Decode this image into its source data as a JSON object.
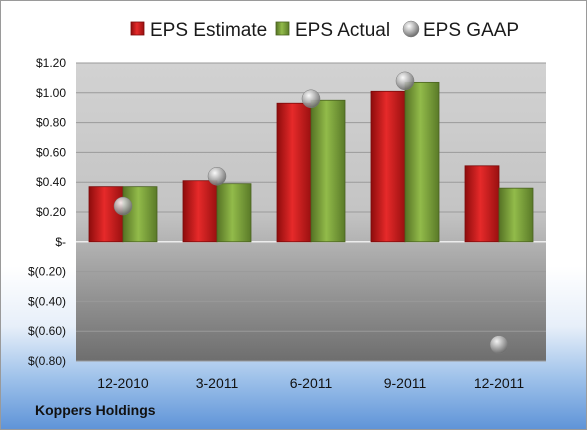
{
  "company_name": "Koppers Holdings",
  "chart_data": {
    "type": "bar",
    "title": "",
    "xlabel": "",
    "ylabel": "",
    "categories": [
      "12-2010",
      "3-2011",
      "6-2011",
      "9-2011",
      "12-2011"
    ],
    "series": [
      {
        "name": "EPS Estimate",
        "kind": "bar",
        "color": "#d42020",
        "values": [
          0.37,
          0.41,
          0.93,
          1.01,
          0.51
        ]
      },
      {
        "name": "EPS Actual",
        "kind": "bar",
        "color": "#7fa43a",
        "values": [
          0.37,
          0.39,
          0.95,
          1.07,
          0.36
        ]
      },
      {
        "name": "EPS GAAP",
        "kind": "marker",
        "color": "#b8b8b8",
        "values": [
          0.24,
          0.44,
          0.96,
          1.08,
          -0.69
        ]
      }
    ],
    "ylim": [
      -0.8,
      1.2
    ],
    "yticks": [
      1.2,
      1.0,
      0.8,
      0.6,
      0.4,
      0.2,
      0,
      -0.2,
      -0.4,
      -0.6,
      -0.8
    ],
    "ytick_labels": [
      "$1.20",
      "$1.00",
      "$0.80",
      "$0.60",
      "$0.40",
      "$0.20",
      "$-",
      "$(0.20)",
      "$(0.40)",
      "$(0.60)",
      "$(0.80)"
    ],
    "legend_position": "top",
    "grid": true
  }
}
